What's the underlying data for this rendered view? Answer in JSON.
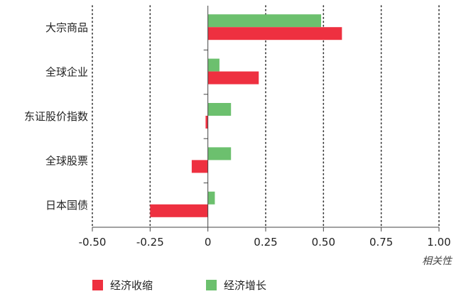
{
  "chart_data": {
    "type": "bar",
    "orientation": "horizontal",
    "categories": [
      "大宗商品",
      "全球企业",
      "东证股价指数",
      "全球股票",
      "日本国债"
    ],
    "series": [
      {
        "name": "经济增长",
        "color": "#6cc06e",
        "values": [
          0.49,
          0.05,
          0.1,
          0.1,
          0.03
        ]
      },
      {
        "name": "经济收缩",
        "color": "#ee3040",
        "values": [
          0.58,
          0.22,
          -0.01,
          -0.07,
          -0.25
        ]
      }
    ],
    "xlim": [
      -0.5,
      1.0
    ],
    "xticks": [
      "-0.50",
      "-0.25",
      "0",
      "0.25",
      "0.50",
      "0.75",
      "1.00"
    ],
    "xtick_values": [
      -0.5,
      -0.25,
      0,
      0.25,
      0.5,
      0.75,
      1.0
    ],
    "xlabel": "相关性",
    "grid": "vertical dotted",
    "legend": [
      {
        "name": "经济收缩",
        "color": "#ee3040"
      },
      {
        "name": "经济增长",
        "color": "#6cc06e"
      }
    ],
    "legend_position": "bottom-left"
  }
}
